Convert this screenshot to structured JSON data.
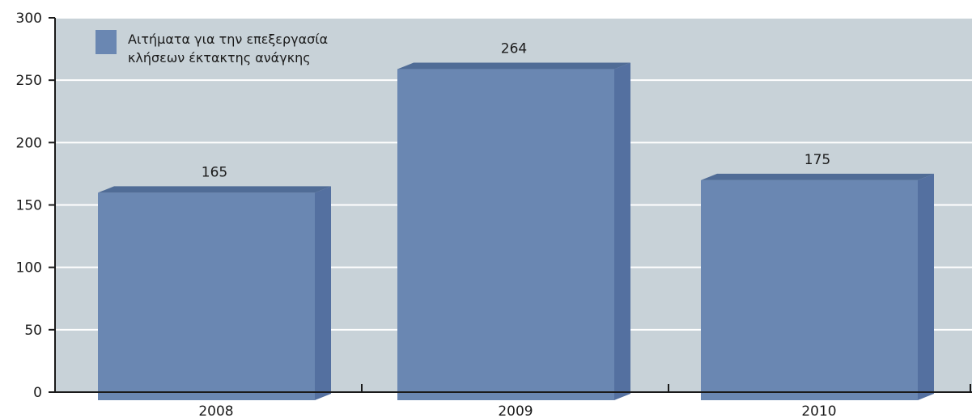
{
  "chart_data": {
    "type": "bar",
    "categories": [
      "2008",
      "2009",
      "2010"
    ],
    "series": [
      {
        "name": "Αιτήματα για την επεξεργασία κλήσεων έκτακτης ανάγκης",
        "values": [
          165,
          264,
          175
        ]
      }
    ],
    "data_labels": [
      "165",
      "264",
      "175"
    ],
    "legend": {
      "lines": [
        "Αιτήματα για την επεξεργασία",
        "κλήσεων έκτακτης ανάγκης"
      ],
      "placement": "top-left"
    },
    "ylim": [
      0,
      300
    ],
    "yticks": [
      0,
      50,
      100,
      150,
      200,
      250,
      300
    ],
    "ytick_labels": [
      "0",
      "50",
      "100",
      "150",
      "200",
      "250",
      "300"
    ],
    "grid": true,
    "style": "3d",
    "colors": {
      "plot_background": "#c8d2d8",
      "bar_front": "#6a87b2",
      "bar_top": "#506c96",
      "bar_side": "#5470a0",
      "gridline": "#ffffff",
      "axis": "#1a1a1a"
    }
  }
}
